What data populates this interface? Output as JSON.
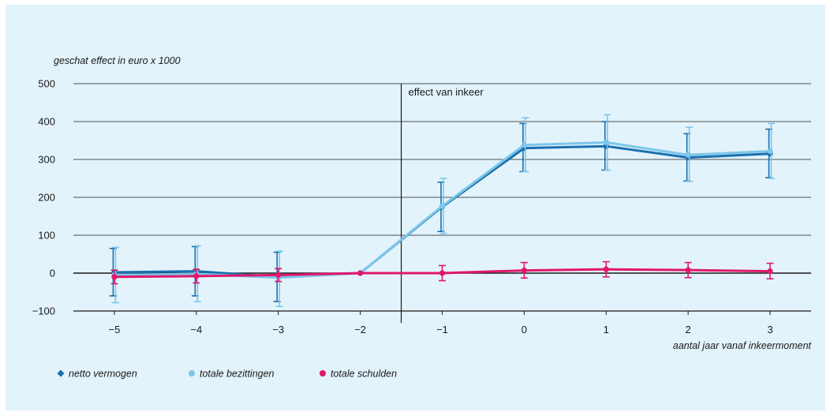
{
  "colors": {
    "background": "#e3f3fb",
    "netto_vermogen": "#1a6fae",
    "totale_bezittingen": "#7cc6ea",
    "totale_schulden": "#e0186c"
  },
  "chart_data": {
    "type": "line",
    "title": "",
    "ylabel": "geschat effect in euro x 1000",
    "xlabel": "aantal jaar vanaf inkeermoment",
    "x": [
      -5,
      -4,
      -3,
      -2,
      -1,
      0,
      1,
      2,
      3
    ],
    "x_tick_labels": [
      "−5",
      "−4",
      "−3",
      "−2",
      "−1",
      "0",
      "1",
      "2",
      "3"
    ],
    "y_ticks": [
      -100,
      0,
      100,
      200,
      300,
      400,
      500
    ],
    "y_tick_labels": [
      "−100",
      "0",
      "100",
      "200",
      "300",
      "400",
      "500"
    ],
    "ylim": [
      -100,
      500
    ],
    "xlim": [
      -5.5,
      3.5
    ],
    "grid": true,
    "legend_position": "bottom-left",
    "annotation": {
      "text": "effect van inkeer",
      "x": -1.5
    },
    "series": [
      {
        "name": "netto vermogen",
        "values": [
          2,
          5,
          -10,
          0,
          175,
          330,
          335,
          305,
          315
        ],
        "ci_low": [
          -60,
          -60,
          -75,
          0,
          110,
          268,
          272,
          243,
          252
        ],
        "ci_high": [
          65,
          70,
          55,
          0,
          240,
          395,
          400,
          368,
          380
        ]
      },
      {
        "name": "totale bezittingen",
        "values": [
          -5,
          -2,
          -12,
          0,
          177,
          338,
          345,
          312,
          322
        ],
        "ci_low": [
          -78,
          -75,
          -88,
          0,
          105,
          268,
          272,
          242,
          250
        ],
        "ci_high": [
          68,
          72,
          58,
          0,
          250,
          410,
          418,
          385,
          395
        ]
      },
      {
        "name": "totale schulden",
        "values": [
          -10,
          -8,
          -5,
          0,
          0,
          7,
          10,
          8,
          5
        ],
        "ci_low": [
          -28,
          -26,
          -22,
          0,
          -20,
          -13,
          -10,
          -12,
          -15
        ],
        "ci_high": [
          8,
          10,
          12,
          0,
          20,
          28,
          30,
          28,
          26
        ]
      }
    ]
  }
}
